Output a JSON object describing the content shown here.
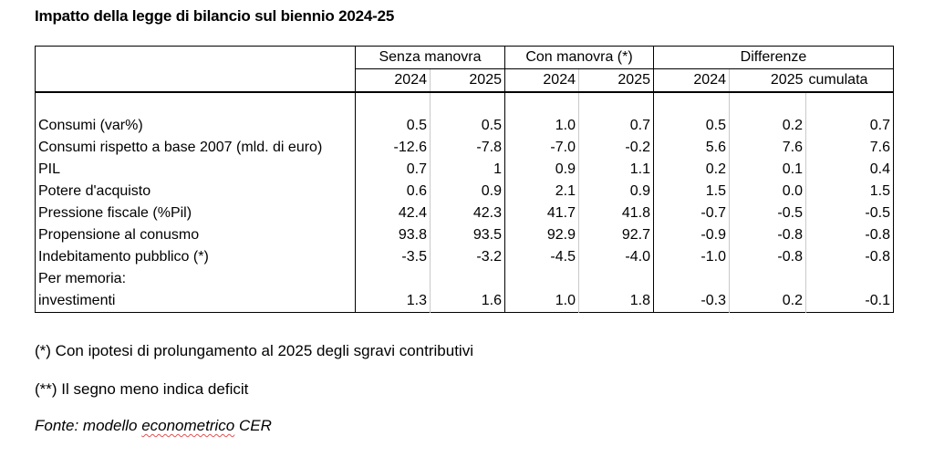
{
  "title": "Impatto della legge di bilancio sul biennio 2024-25",
  "table": {
    "groups": [
      "Senza manovra",
      "Con manovra (*)",
      "Differenze"
    ],
    "subheaders": [
      "2024",
      "2025",
      "2024",
      "2025",
      "2024",
      "2025",
      "cumulata"
    ],
    "rows": [
      {
        "label": "Consumi (var%)",
        "values": [
          "0.5",
          "0.5",
          "1.0",
          "0.7",
          "0.5",
          "0.2",
          "0.7"
        ]
      },
      {
        "label": "Consumi rispetto a base 2007 (mld. di euro)",
        "values": [
          "-12.6",
          "-7.8",
          "-7.0",
          "-0.2",
          "5.6",
          "7.6",
          "7.6"
        ]
      },
      {
        "label": "PIL",
        "values": [
          "0.7",
          "1",
          "0.9",
          "1.1",
          "0.2",
          "0.1",
          "0.4"
        ]
      },
      {
        "label": "Potere d'acquisto",
        "values": [
          "0.6",
          "0.9",
          "2.1",
          "0.9",
          "1.5",
          "0.0",
          "1.5"
        ]
      },
      {
        "label": "Pressione fiscale (%Pil)",
        "values": [
          "42.4",
          "42.3",
          "41.7",
          "41.8",
          "-0.7",
          "-0.5",
          "-0.5"
        ]
      },
      {
        "label": "Propensione al conusmo",
        "values": [
          "93.8",
          "93.5",
          "92.9",
          "92.7",
          "-0.9",
          "-0.8",
          "-0.8"
        ]
      },
      {
        "label": "Indebitamento pubblico (*)",
        "values": [
          "-3.5",
          "-3.2",
          "-4.5",
          "-4.0",
          "-1.0",
          "-0.8",
          "-0.8"
        ]
      },
      {
        "label": "Per memoria:",
        "values": [
          "",
          "",
          "",
          "",
          "",
          "",
          ""
        ]
      },
      {
        "label": "investimenti",
        "values": [
          "1.3",
          "1.6",
          "1.0",
          "1.8",
          "-0.3",
          "0.2",
          "-0.1"
        ]
      }
    ]
  },
  "footnotes": {
    "note1": "(*) Con ipotesi di prolungamento al 2025 degli sgravi contributivi",
    "note2": "(**) Il segno meno indica deficit",
    "source_prefix": "Fonte: modello ",
    "source_word": "econometrico",
    "source_suffix": " CER"
  }
}
